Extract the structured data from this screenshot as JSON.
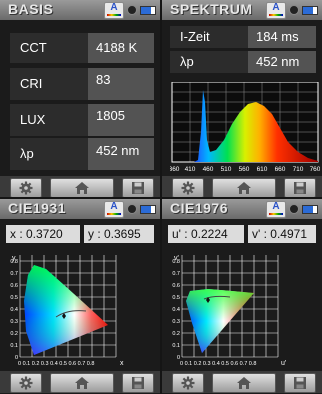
{
  "basis": {
    "title": "BASIS",
    "rows": [
      {
        "label": "CCT",
        "value": "4188 K"
      },
      {
        "label": "CRI",
        "value": "83"
      },
      {
        "label": "LUX",
        "value": "1805"
      },
      {
        "label": "λp",
        "value": "452 nm"
      }
    ]
  },
  "spektrum": {
    "title": "SPEKTRUM",
    "rows": [
      {
        "label": "I-Zeit",
        "value": "184 ms"
      },
      {
        "label": "λp",
        "value": "452 nm"
      }
    ],
    "axis_ticks": [
      "360",
      "410",
      "460",
      "510",
      "560",
      "610",
      "660",
      "710",
      "760"
    ]
  },
  "cie1931": {
    "title": "CIE1931",
    "x_label": "x : 0.3720",
    "y_label": "y : 0.3695",
    "axis_y": "y",
    "axis_x": "x",
    "ticks": [
      "0",
      "0.1",
      "0.2",
      "0.3",
      "0.4",
      "0.5",
      "0.6",
      "0.7",
      "0.8"
    ],
    "ticks_text": "0 0.1 0.2 0.3 0.4 0.5 0.6 0.7 0.8"
  },
  "cie1976": {
    "title": "CIE1976",
    "u_label": "u' : 0.2224",
    "v_label": "v' : 0.4971",
    "axis_y": "v'",
    "axis_x": "u'",
    "ticks": [
      "0",
      "0.1",
      "0.2",
      "0.3",
      "0.4",
      "0.5",
      "0.6",
      "0.7",
      "0.8"
    ],
    "ticks_text": "0 0.1 0.2 0.3 0.4 0.5 0.6 0.7 0.8"
  },
  "status_icons": [
    "auto-mode-icon",
    "record-dot-icon",
    "battery-icon"
  ],
  "toolbar_icons": [
    "gear-icon",
    "home-icon",
    "save-icon"
  ]
}
